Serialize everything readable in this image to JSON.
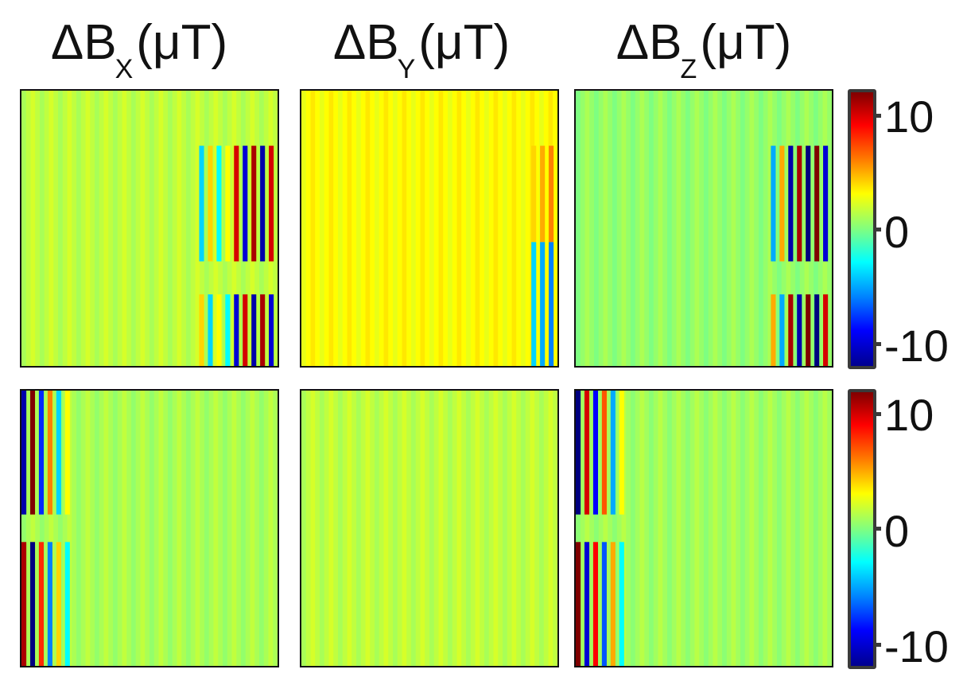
{
  "column_titles": [
    {
      "base": "ΔB",
      "sub": "X",
      "unit": "(μT)"
    },
    {
      "base": "ΔB",
      "sub": "Y",
      "unit": "(μT)"
    },
    {
      "base": "ΔB",
      "sub": "Z",
      "unit": "(μT)"
    }
  ],
  "colorbars": [
    {
      "ticks": [
        "10",
        "0",
        "-10"
      ]
    },
    {
      "ticks": [
        "10",
        "0",
        "-10"
      ]
    }
  ],
  "colormap": "jet",
  "chart_data": {
    "type": "heatmap",
    "colormap": "jet",
    "vmin": -12,
    "vmax": 12,
    "colorbar_ticks": [
      10,
      0,
      -10
    ],
    "column_labels": [
      "ΔBX(μT)",
      "ΔBY(μT)",
      "ΔBZ(μT)"
    ],
    "rows": 2,
    "panels": [
      {
        "row": 1,
        "column": "ΔBX",
        "background": 1.5,
        "stripes": [
          -4,
          4,
          -3,
          3,
          10,
          -10,
          11,
          -11,
          10
        ],
        "dipole_rows": [
          0.62,
          0.74
        ]
      },
      {
        "row": 1,
        "column": "ΔBY",
        "background": 3.0,
        "stripes": [
          4,
          5,
          6
        ],
        "dipole_rows": [
          0.55
        ]
      },
      {
        "row": 1,
        "column": "ΔBZ",
        "background": 0.5,
        "stripes": [
          -5,
          5,
          -11,
          11,
          -12,
          12,
          -10
        ],
        "dipole_rows": [
          0.62,
          0.74
        ]
      },
      {
        "row": 2,
        "column": "ΔBX",
        "background": 1.0,
        "stripes": [
          -11,
          12,
          -8,
          6,
          -4,
          3
        ],
        "dipole_rows": [
          0.45,
          0.55
        ]
      },
      {
        "row": 2,
        "column": "ΔBY",
        "background": 1.5,
        "stripes": [],
        "dipole_rows": []
      },
      {
        "row": 2,
        "column": "ΔBZ",
        "background": 0.8,
        "stripes": [
          -12,
          10,
          -9,
          7,
          -5,
          3
        ],
        "dipole_rows": [
          0.45,
          0.55
        ]
      }
    ]
  }
}
